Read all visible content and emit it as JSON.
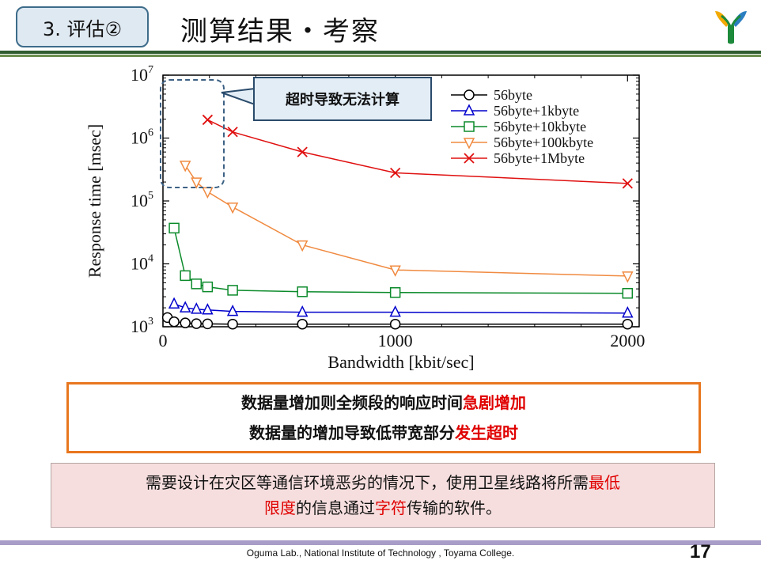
{
  "header": {
    "section_label": "3. 评估②",
    "title": "测算结果・考察"
  },
  "callout": {
    "text": "超时导致无法计算"
  },
  "chart_data": {
    "type": "line",
    "title": "",
    "xlabel": "Bandwidth [kbit/sec]",
    "ylabel": "Response time [msec]",
    "xlim": [
      0,
      2050
    ],
    "ylim": [
      1000,
      10000000
    ],
    "yscale": "log",
    "xticks": [
      0,
      1000,
      2000
    ],
    "xtick_labels": [
      "0",
      "1000",
      "2000"
    ],
    "yticks": [
      1000,
      10000,
      100000,
      1000000,
      10000000
    ],
    "ytick_labels": [
      {
        "base": "10",
        "exp": "3"
      },
      {
        "base": "10",
        "exp": "4"
      },
      {
        "base": "10",
        "exp": "5"
      },
      {
        "base": "10",
        "exp": "6"
      },
      {
        "base": "10",
        "exp": "7"
      }
    ],
    "grid": false,
    "legend_position": "top-right",
    "series": [
      {
        "name": "56byte",
        "color": "#000000",
        "marker": "circle",
        "x": [
          19.2,
          48,
          96,
          144,
          192,
          300,
          600,
          1000,
          2000
        ],
        "y": [
          1400,
          1200,
          1150,
          1120,
          1110,
          1100,
          1100,
          1100,
          1100
        ]
      },
      {
        "name": "56byte+1kbyte",
        "color": "#0000cc",
        "marker": "triangle-up",
        "x": [
          48,
          96,
          144,
          192,
          300,
          600,
          1000,
          2000
        ],
        "y": [
          2300,
          2000,
          1900,
          1850,
          1750,
          1700,
          1700,
          1650
        ]
      },
      {
        "name": "56byte+10kbyte",
        "color": "#0b8a2a",
        "marker": "square",
        "x": [
          48,
          96,
          144,
          192,
          300,
          600,
          1000,
          2000
        ],
        "y": [
          37000,
          6500,
          4800,
          4300,
          3800,
          3600,
          3500,
          3400
        ]
      },
      {
        "name": "56byte+100kbyte",
        "color": "#f08a40",
        "marker": "triangle-down",
        "x": [
          96,
          144,
          192,
          300,
          600,
          1000,
          2000
        ],
        "y": [
          370000,
          200000,
          140000,
          80000,
          20000,
          8000,
          6400
        ]
      },
      {
        "name": "56byte+1Mbyte",
        "color": "#e01010",
        "marker": "x",
        "x": [
          192,
          300,
          600,
          1000,
          2000
        ],
        "y": [
          1950000,
          1250000,
          600000,
          280000,
          190000
        ]
      }
    ]
  },
  "summary": {
    "line1_pre": "数据量增加则全频段的响应时间",
    "line1_hl": "急剧增加",
    "line2_pre": "数据量的增加导致低带宽部分",
    "line2_hl": "发生超时"
  },
  "note": {
    "l1_pre": "需要设计在灾区等通信环境恶劣的情况下，使用卫星线路将所需",
    "l1_hl": "最低",
    "l2_hl1": "限度",
    "l2_mid": "的信息通过",
    "l2_hl2": "字符",
    "l2_post": "传输的软件。"
  },
  "footer": {
    "text": "Oguma Lab., National Institute of Technology , Toyama College.",
    "page_number": "17"
  },
  "colors": {
    "title_rule": "#2f5d2f",
    "footer_rule": "#a89cc8",
    "summary_border": "#e8761e",
    "highlight": "#e00000",
    "note_bg": "#f6dede"
  }
}
